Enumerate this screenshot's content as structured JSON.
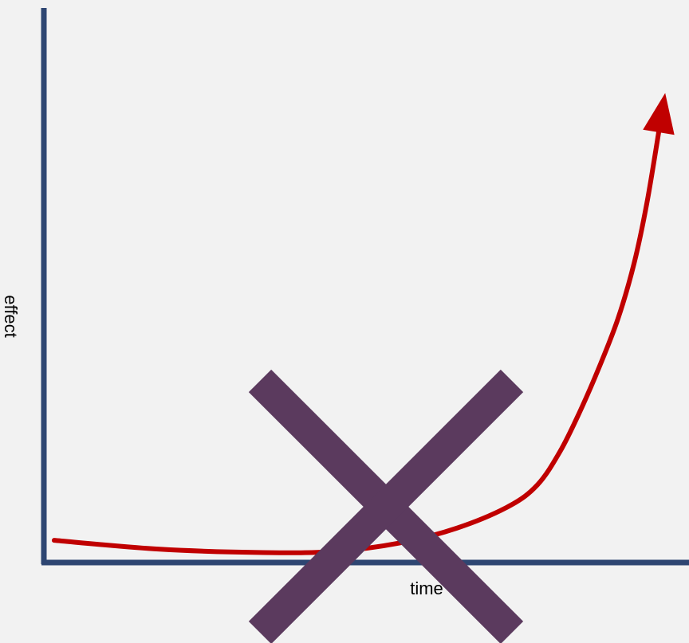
{
  "colors": {
    "background": "#f2f2f2",
    "axis": "#2e4672",
    "curve": "#c00000",
    "cross": "#5b3a5e"
  },
  "chart_data": {
    "type": "line",
    "title": "",
    "xlabel": "time",
    "ylabel": "effect",
    "xlim": [
      0,
      1
    ],
    "ylim": [
      0,
      1
    ],
    "grid": false,
    "legend": "none",
    "ticks": "none",
    "series": [
      {
        "x": [
          0.016,
          0.18,
          0.34,
          0.45,
          0.55,
          0.64,
          0.72,
          0.765,
          0.8,
          0.83,
          0.86,
          0.89,
          0.915,
          0.935,
          0.955
        ],
        "y": [
          0.04,
          0.024,
          0.018,
          0.02,
          0.035,
          0.062,
          0.101,
          0.14,
          0.2,
          0.27,
          0.35,
          0.44,
          0.54,
          0.65,
          0.79
        ],
        "end_marker": "arrow"
      }
    ],
    "annotations": [
      {
        "type": "cross-out",
        "shape": "x-mark",
        "over": "chart"
      }
    ]
  }
}
